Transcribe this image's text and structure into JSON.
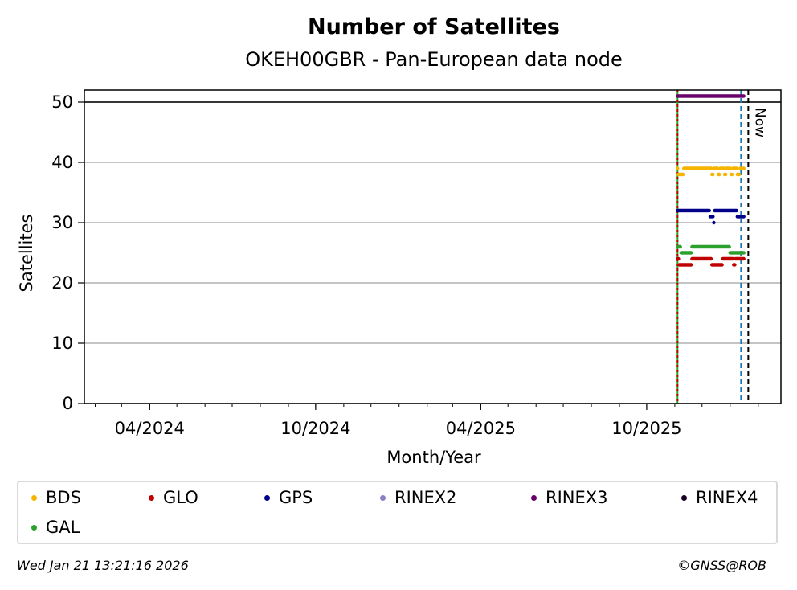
{
  "chart_data": {
    "type": "scatter",
    "title": "Number of Satellites",
    "subtitle": "OKEH00GBR - Pan-European data node",
    "xlabel": "Month/Year",
    "ylabel": "Satellites",
    "ylim": [
      0,
      52
    ],
    "xlim": [
      "2024-01-20",
      "2026-02-26"
    ],
    "yticks": [
      0,
      10,
      20,
      30,
      40,
      50
    ],
    "xtick_labels": [
      {
        "date": "2024-04-01",
        "label": "04/2024"
      },
      {
        "date": "2024-10-01",
        "label": "10/2024"
      },
      {
        "date": "2025-04-01",
        "label": "04/2025"
      },
      {
        "date": "2025-10-01",
        "label": "10/2025"
      }
    ],
    "minor_ticks_monthly": true,
    "grid": "horizontal",
    "reference_lines": {
      "horizontal_solid": 50,
      "vertical_start_date": "2025-11-04",
      "vertical_blue_dashed_date": "2026-01-13",
      "vertical_now_date": "2026-01-21"
    },
    "annotation_now": "Now",
    "series": [
      {
        "name": "BDS",
        "color": "#f5b400",
        "start": "2025-11-04",
        "end": "2026-01-16",
        "step_days": 1,
        "base": 39,
        "dips": [
          {
            "from": "2025-11-05",
            "to": "2025-11-10",
            "value": 38
          },
          {
            "from": "2025-12-12",
            "to": "2025-12-13",
            "value": 38
          },
          {
            "from": "2025-12-19",
            "to": "2025-12-20",
            "value": 38
          },
          {
            "from": "2025-12-26",
            "to": "2025-12-27",
            "value": 38
          },
          {
            "from": "2026-01-02",
            "to": "2026-01-03",
            "value": 38
          },
          {
            "from": "2026-01-09",
            "to": "2026-01-11",
            "value": 38
          }
        ]
      },
      {
        "name": "GLO",
        "color": "#c00000",
        "start": "2025-11-04",
        "end": "2026-01-16",
        "step_days": 1,
        "base": 24,
        "dips": [
          {
            "from": "2025-11-06",
            "to": "2025-11-19",
            "value": 23
          },
          {
            "from": "2025-12-12",
            "to": "2025-12-23",
            "value": 23
          },
          {
            "from": "2026-01-05",
            "to": "2026-01-06",
            "value": 23
          }
        ]
      },
      {
        "name": "GPS",
        "color": "#00008b",
        "start": "2025-11-04",
        "end": "2026-01-16",
        "step_days": 1,
        "base": 32,
        "dips": [
          {
            "from": "2025-12-10",
            "to": "2025-12-13",
            "value": 31
          },
          {
            "from": "2025-12-14",
            "to": "2025-12-14",
            "value": 30
          },
          {
            "from": "2026-01-09",
            "to": "2026-01-16",
            "value": 31
          }
        ]
      },
      {
        "name": "RINEX2",
        "color": "#8a7fc3",
        "points": []
      },
      {
        "name": "RINEX3",
        "color": "#6a006a",
        "start": "2025-11-04",
        "end": "2026-01-16",
        "step_days": 1,
        "base": 51,
        "dips": []
      },
      {
        "name": "RINEX4",
        "color": "#1a0022",
        "points": []
      },
      {
        "name": "GAL",
        "color": "#2ca02c",
        "start": "2025-11-04",
        "end": "2026-01-16",
        "step_days": 1,
        "base": 26,
        "dips": [
          {
            "from": "2025-11-08",
            "to": "2025-11-19",
            "value": 25
          },
          {
            "from": "2026-01-01",
            "to": "2026-01-16",
            "value": 25
          }
        ]
      }
    ]
  },
  "legend": [
    {
      "label": "BDS",
      "color": "#f5b400"
    },
    {
      "label": "GLO",
      "color": "#c00000"
    },
    {
      "label": "GPS",
      "color": "#00008b"
    },
    {
      "label": "RINEX2",
      "color": "#8a7fc3"
    },
    {
      "label": "RINEX3",
      "color": "#6a006a"
    },
    {
      "label": "RINEX4",
      "color": "#1a0022"
    },
    {
      "label": "GAL",
      "color": "#2ca02c"
    }
  ],
  "footer": {
    "timestamp": "Wed Jan 21 13:21:16 2026",
    "copyright": "©GNSS@ROB"
  }
}
